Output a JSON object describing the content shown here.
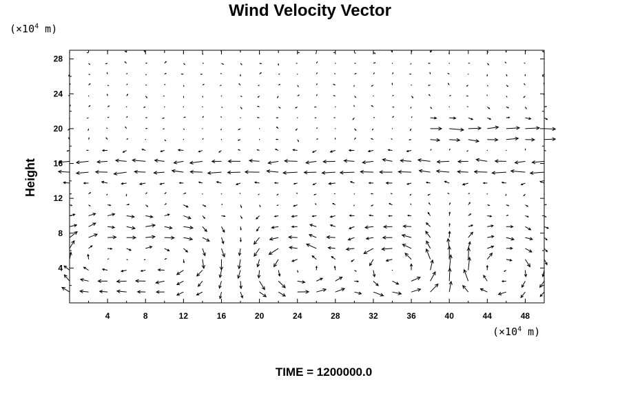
{
  "chart_data": {
    "type": "vector_field",
    "title": "Wind Velocity Vector",
    "ylabel": "Height",
    "x_unit_prefix": "(×10",
    "x_unit_exp": "4",
    "x_unit_suffix": " m)",
    "y_unit_prefix": "(×10",
    "y_unit_exp": "4",
    "y_unit_suffix": " m)",
    "xlim": [
      0,
      50
    ],
    "ylim": [
      0,
      29
    ],
    "xticks": [
      "4",
      "8",
      "12",
      "16",
      "20",
      "24",
      "28",
      "32",
      "36",
      "40",
      "44",
      "48"
    ],
    "yticks": [
      "4",
      "8",
      "12",
      "16",
      "20",
      "24",
      "28"
    ],
    "xtick_values": [
      4,
      8,
      12,
      16,
      20,
      24,
      28,
      32,
      36,
      40,
      44,
      48
    ],
    "ytick_values": [
      4,
      8,
      12,
      16,
      20,
      24,
      28
    ],
    "grid": false,
    "grid_dx": 2,
    "grid_dy": 1.25,
    "circulation_cells": [
      {
        "x_center": 3,
        "y_center": 5,
        "direction": "clockwise",
        "strength": 1.0
      },
      {
        "x_center": 11,
        "y_center": 5,
        "direction": "clockwise",
        "strength": 1.0
      },
      {
        "x_center": 24,
        "y_center": 4,
        "direction": "counterclockwise",
        "strength": 1.2
      },
      {
        "x_center": 35,
        "y_center": 4,
        "direction": "counterclockwise",
        "strength": 1.3
      },
      {
        "x_center": 45,
        "y_center": 4,
        "direction": "clockwise",
        "strength": 1.0
      }
    ],
    "upper_flow": [
      {
        "y_center": 15.5,
        "u": -1.0
      },
      {
        "y_center": 19.5,
        "u": 1.0,
        "x_from": 38
      }
    ]
  },
  "time_label": "TIME = 1200000.0"
}
